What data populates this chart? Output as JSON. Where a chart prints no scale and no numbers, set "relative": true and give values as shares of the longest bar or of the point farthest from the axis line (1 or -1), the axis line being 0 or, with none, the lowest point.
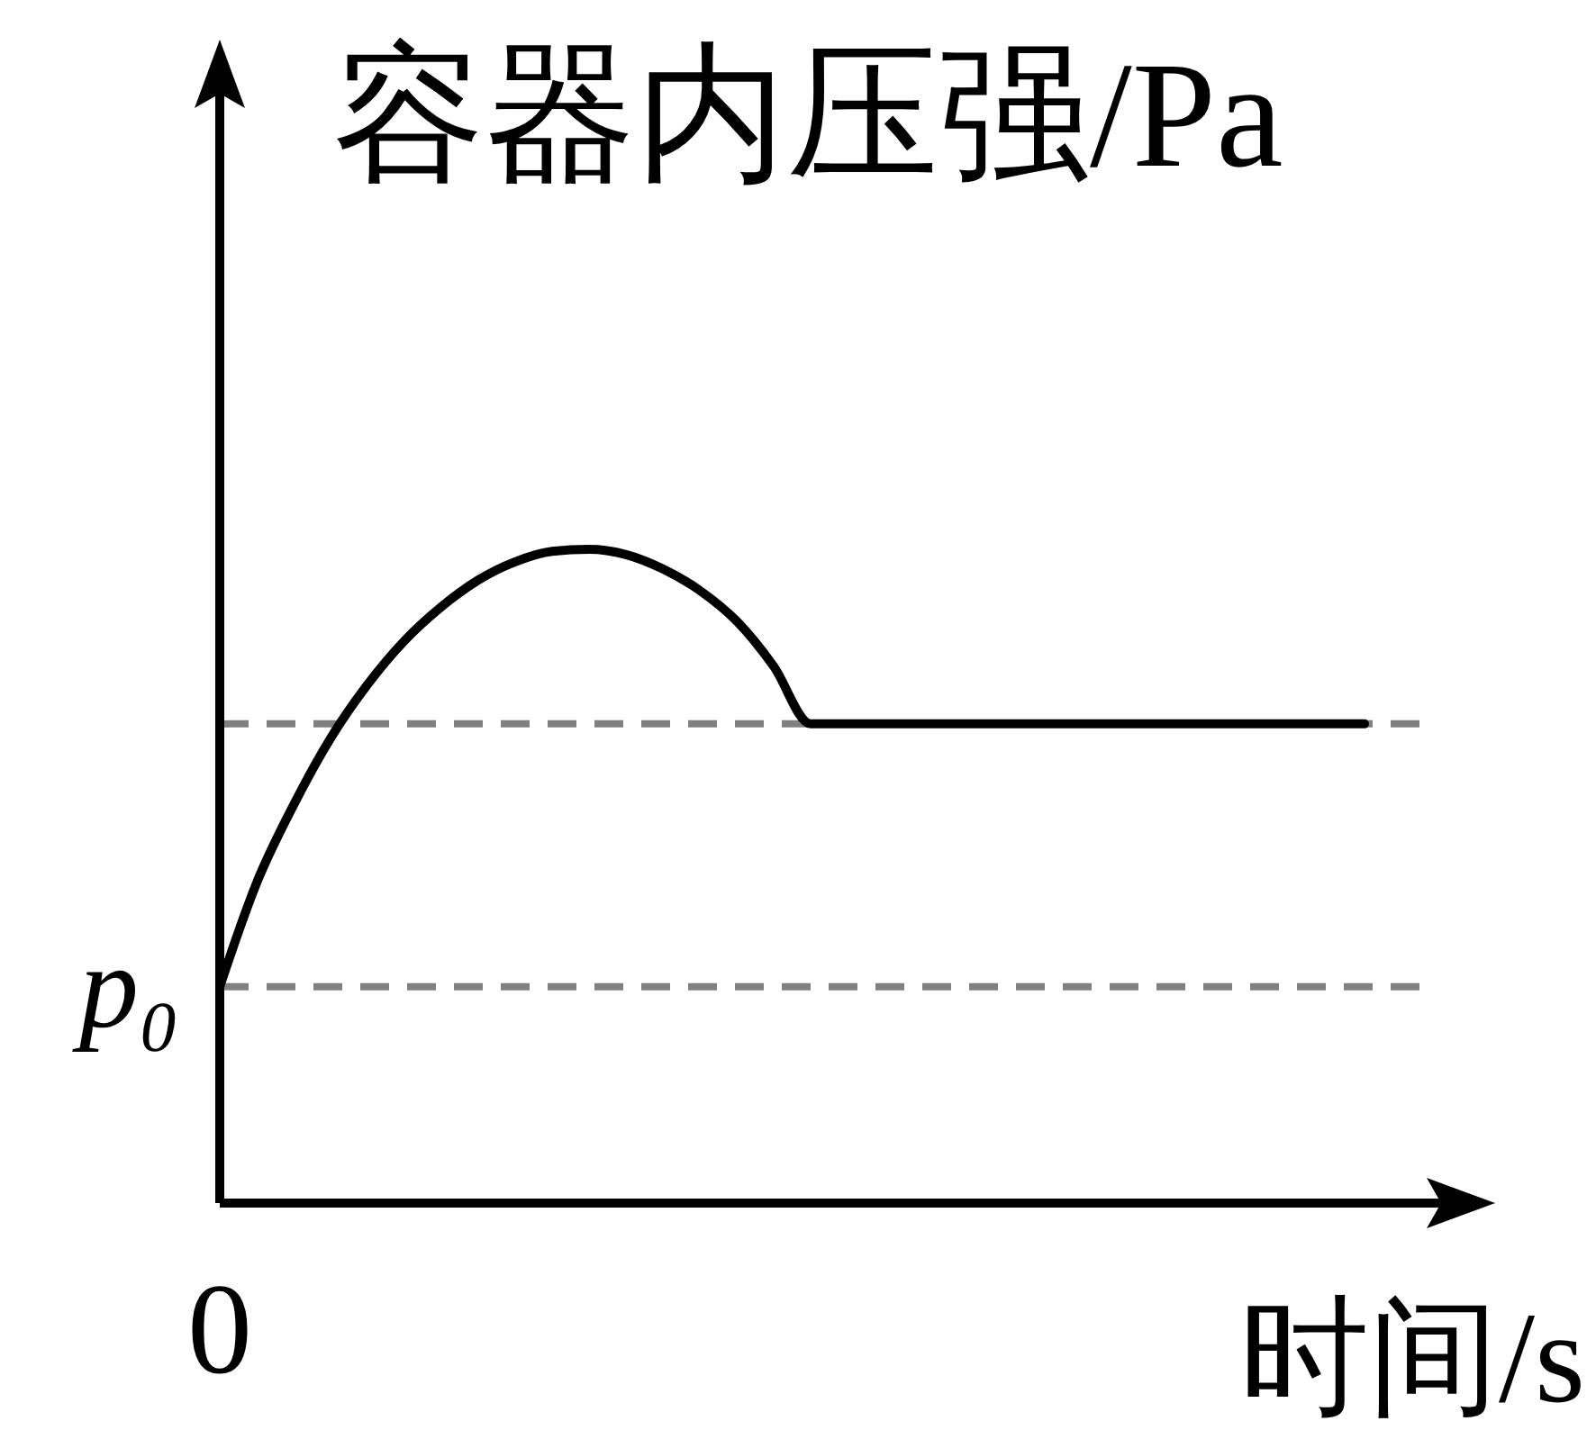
{
  "chart_data": {
    "type": "line",
    "xlabel": "时间/s",
    "ylabel": "容器内压强/Pa",
    "relative": true,
    "categories": [
      null,
      null,
      null,
      null,
      null,
      null,
      null,
      null,
      null,
      null,
      null,
      null,
      null,
      null,
      null,
      null,
      null,
      null,
      null,
      null,
      null,
      null,
      null,
      null,
      null,
      null,
      null,
      null,
      null,
      null,
      null,
      null
    ],
    "values": [
      0.331,
      0.49,
      0.609,
      0.711,
      0.793,
      0.86,
      0.912,
      0.953,
      0.981,
      0.997,
      1,
      0.992,
      0.97,
      0.937,
      0.89,
      0.821,
      0.733,
      0.733,
      0.733,
      0.733,
      0.733,
      0.733,
      0.733,
      0.733,
      0.733,
      0.733,
      0.733,
      0.733,
      0.733,
      0.733,
      0.733,
      0.733
    ],
    "color": "#000000",
    "ref_lines": [
      {
        "axis": "y",
        "value": 0.331,
        "label": "p₀",
        "color": "#808080",
        "line_style": "dashed"
      },
      {
        "axis": "y",
        "value": 0.733,
        "color": "#808080",
        "line_style": "dashed"
      }
    ],
    "annotations": [
      "0"
    ]
  }
}
